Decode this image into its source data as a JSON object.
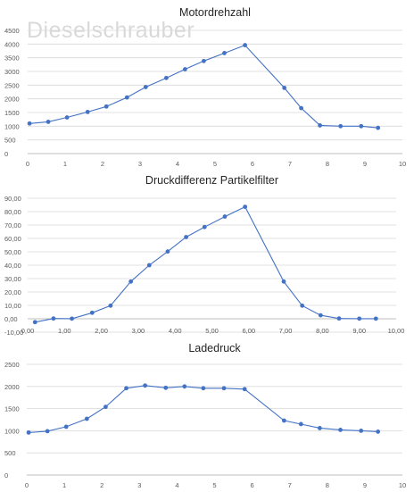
{
  "watermark": "Dieselschrauber",
  "chart_data": [
    {
      "type": "line",
      "title": "Motordrehzahl",
      "xlabel": "",
      "ylabel": "",
      "xlim": [
        0,
        10
      ],
      "ylim": [
        0,
        4500
      ],
      "xticks": [
        "0",
        "1",
        "2",
        "3",
        "4",
        "5",
        "6",
        "7",
        "8",
        "9",
        "10"
      ],
      "yticks": [
        "0",
        "500",
        "1000",
        "1500",
        "2000",
        "2500",
        "3000",
        "3500",
        "4000",
        "4500"
      ],
      "grid": true,
      "color": "#4472c4",
      "x": [
        0.05,
        0.55,
        1.05,
        1.6,
        2.1,
        2.65,
        3.15,
        3.7,
        4.2,
        4.7,
        5.25,
        5.8,
        6.85,
        7.3,
        7.8,
        8.35,
        8.9,
        9.35
      ],
      "y": [
        1100,
        1160,
        1320,
        1520,
        1720,
        2050,
        2430,
        2760,
        3080,
        3380,
        3670,
        3960,
        2400,
        1660,
        1030,
        1000,
        1000,
        940
      ]
    },
    {
      "type": "line",
      "title": "Druckdifferenz Partikelfilter",
      "xlabel": "",
      "ylabel": "",
      "xlim": [
        0,
        10
      ],
      "ylim": [
        -10,
        90
      ],
      "xticks": [
        "0,00",
        "1,00",
        "2,00",
        "3,00",
        "4,00",
        "5,00",
        "6,00",
        "7,00",
        "8,00",
        "9,00",
        "10,00"
      ],
      "yticks": [
        "-10,00",
        "0,00",
        "10,00",
        "20,00",
        "30,00",
        "40,00",
        "50,00",
        "60,00",
        "70,00",
        "80,00",
        "90,00"
      ],
      "grid": true,
      "color": "#4472c4",
      "x": [
        0.2,
        0.7,
        1.2,
        1.75,
        2.25,
        2.8,
        3.3,
        3.8,
        4.3,
        4.8,
        5.35,
        5.9,
        6.95,
        7.45,
        7.95,
        8.45,
        9.0,
        9.45
      ],
      "y": [
        -2.5,
        0.2,
        0.1,
        4.5,
        9.8,
        27.8,
        40.0,
        50.2,
        61.0,
        68.5,
        76.3,
        83.6,
        27.8,
        9.8,
        2.6,
        0.2,
        0.1,
        0.1
      ]
    },
    {
      "type": "line",
      "title": "Ladedruck",
      "xlabel": "",
      "ylabel": "",
      "xlim": [
        0,
        10
      ],
      "ylim": [
        0,
        2500
      ],
      "xticks": [
        "0",
        "1",
        "2",
        "3",
        "4",
        "5",
        "6",
        "7",
        "8",
        "9",
        "10"
      ],
      "yticks": [
        "0",
        "500",
        "1000",
        "1500",
        "2000",
        "2500"
      ],
      "grid": true,
      "color": "#4472c4",
      "x": [
        0.05,
        0.55,
        1.05,
        1.6,
        2.1,
        2.65,
        3.15,
        3.7,
        4.2,
        4.7,
        5.25,
        5.8,
        6.85,
        7.3,
        7.8,
        8.35,
        8.9,
        9.35
      ],
      "y": [
        960,
        990,
        1090,
        1270,
        1540,
        1960,
        2020,
        1970,
        2000,
        1960,
        1960,
        1940,
        1230,
        1150,
        1060,
        1020,
        1000,
        980
      ]
    }
  ]
}
